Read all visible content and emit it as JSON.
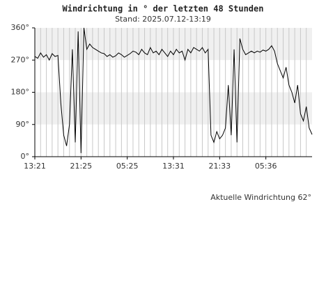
{
  "chart_data": {
    "type": "line",
    "title": "Windrichtung in ° der letzten 48 Stunden",
    "subtitle": "Stand: 2025.07.12-13:19",
    "annotation": "Aktuelle Windrichtung 62°",
    "color": "#000000",
    "x": [
      0,
      0.5,
      1,
      1.5,
      2,
      2.5,
      3,
      3.5,
      4,
      4.5,
      5,
      5.5,
      6,
      6.5,
      7,
      7.5,
      8,
      8.5,
      9,
      9.5,
      10,
      10.5,
      11,
      11.5,
      12,
      12.5,
      13,
      13.5,
      14,
      14.5,
      15,
      15.5,
      16,
      16.5,
      17,
      17.5,
      18,
      18.5,
      19,
      19.5,
      20,
      20.5,
      21,
      21.5,
      22,
      22.5,
      23,
      23.5,
      24,
      24.5,
      25,
      25.5,
      26,
      26.5,
      27,
      27.5,
      28,
      28.5,
      29,
      29.5,
      30,
      30.5,
      31,
      31.5,
      32,
      32.5,
      33,
      33.5,
      34,
      34.5,
      35,
      35.5,
      36,
      36.5,
      37,
      37.5,
      38,
      38.5,
      39,
      39.5,
      40,
      40.5,
      41,
      41.5,
      42,
      42.5,
      43,
      43.5,
      44,
      44.5,
      45,
      45.5,
      46,
      46.5,
      47,
      47.5,
      48
    ],
    "values": [
      280,
      275,
      290,
      278,
      285,
      270,
      288,
      280,
      283,
      150,
      60,
      30,
      90,
      300,
      40,
      350,
      10,
      360,
      300,
      315,
      305,
      300,
      295,
      290,
      288,
      280,
      285,
      278,
      282,
      290,
      285,
      278,
      283,
      288,
      295,
      292,
      285,
      300,
      290,
      285,
      305,
      290,
      295,
      285,
      300,
      290,
      280,
      295,
      285,
      300,
      290,
      295,
      270,
      300,
      290,
      305,
      300,
      295,
      305,
      290,
      300,
      60,
      40,
      70,
      50,
      60,
      80,
      200,
      60,
      300,
      40,
      330,
      300,
      285,
      290,
      295,
      290,
      295,
      292,
      298,
      295,
      300,
      310,
      295,
      260,
      240,
      220,
      250,
      200,
      180,
      150,
      200,
      120,
      100,
      140,
      80,
      62
    ],
    "xlim": [
      0,
      48
    ],
    "xticks": [
      {
        "value": 0,
        "label": "13:21"
      },
      {
        "value": 8,
        "label": "21:25"
      },
      {
        "value": 16,
        "label": "05:25"
      },
      {
        "value": 24,
        "label": "13:31"
      },
      {
        "value": 32,
        "label": "21:33"
      },
      {
        "value": 40,
        "label": "05:36"
      }
    ],
    "xminorticks": [
      1,
      2,
      3,
      4,
      5,
      6,
      7,
      8,
      9,
      10,
      11,
      12,
      13,
      14,
      15,
      16,
      17,
      18,
      19,
      20,
      21,
      22,
      23,
      24,
      25,
      26,
      27,
      28,
      29,
      30,
      31,
      32,
      33,
      34,
      35,
      36,
      37,
      38,
      39,
      40,
      41,
      42,
      43,
      44,
      45,
      46,
      47
    ],
    "ylim": [
      0,
      360
    ],
    "yticks": [
      {
        "value": 0,
        "label": "0°"
      },
      {
        "value": 90,
        "label": "90°"
      },
      {
        "value": 180,
        "label": "180°"
      },
      {
        "value": 270,
        "label": "270°"
      },
      {
        "value": 360,
        "label": "360°"
      }
    ],
    "grid": true
  }
}
